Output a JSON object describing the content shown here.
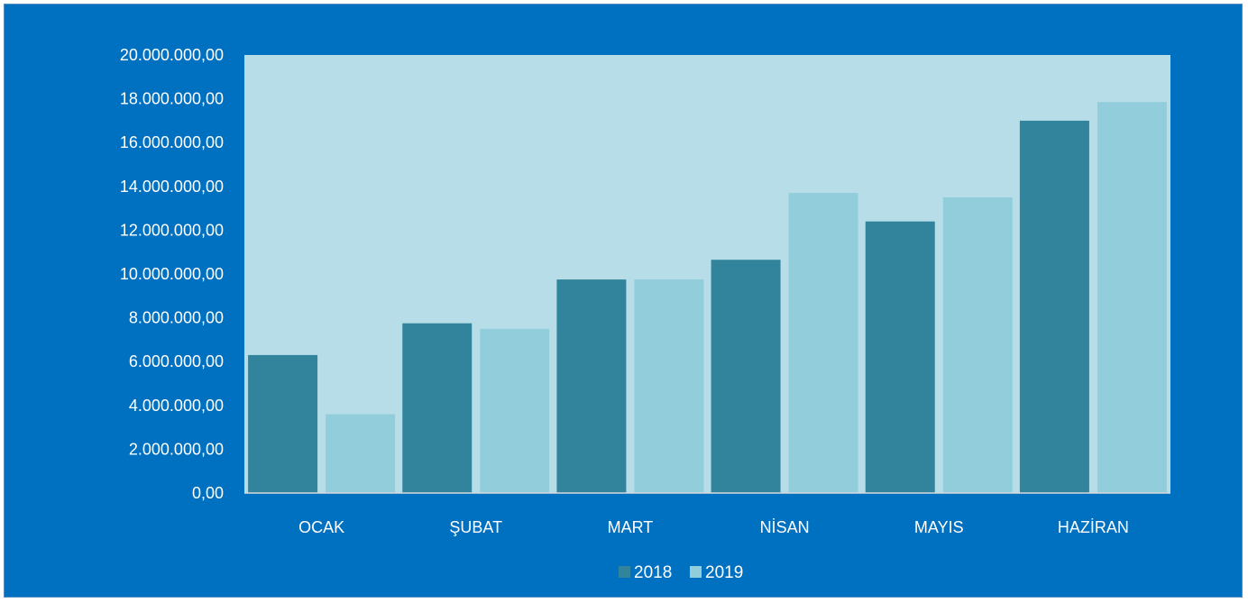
{
  "chart_data": {
    "type": "bar",
    "title": "",
    "xlabel": "",
    "ylabel": "",
    "categories": [
      "OCAK",
      "ŞUBAT",
      "MART",
      "NİSAN",
      "MAYIS",
      "HAZİRAN"
    ],
    "series": [
      {
        "name": "2018",
        "color": "#31849B",
        "values": [
          6300000,
          7750000,
          9750000,
          10650000,
          12400000,
          17000000
        ]
      },
      {
        "name": "2019",
        "color": "#92CDDC",
        "values": [
          3600000,
          7500000,
          9750000,
          13700000,
          13500000,
          17850000
        ]
      }
    ],
    "ylim": [
      0,
      20000000
    ],
    "y_ticks": [
      0,
      2000000,
      4000000,
      6000000,
      8000000,
      10000000,
      12000000,
      14000000,
      16000000,
      18000000,
      20000000
    ],
    "y_tick_labels": [
      "0,00",
      "2.000.000,00",
      "4.000.000,00",
      "6.000.000,00",
      "8.000.000,00",
      "10.000.000,00",
      "12.000.000,00",
      "14.000.000,00",
      "16.000.000,00",
      "18.000.000,00",
      "20.000.000,00"
    ],
    "grid": false,
    "legend_position": "bottom",
    "plot_background": "#B7DEE8",
    "frame_background": "#0070C0"
  }
}
